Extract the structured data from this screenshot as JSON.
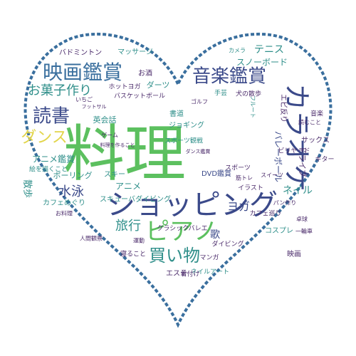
{
  "palette": {
    "green": "#5cc05f",
    "navy": "#3b4a8a",
    "blue": "#3a6f9e",
    "teal": "#2f8f8a",
    "purple": "#4a2a6a",
    "yellow": "#e2d54a",
    "outline": "#3a6f9e"
  },
  "word_cloud": [
    {
      "text": "料理",
      "color": "green"
    },
    {
      "text": "ショッピング",
      "color": "navy"
    },
    {
      "text": "カラオケ",
      "color": "navy"
    },
    {
      "text": "映画鑑賞",
      "color": "blue"
    },
    {
      "text": "音楽鑑賞",
      "color": "navy"
    },
    {
      "text": "ピアノ",
      "color": "green"
    },
    {
      "text": "読書",
      "color": "navy"
    },
    {
      "text": "お菓子作り",
      "color": "teal"
    },
    {
      "text": "ダンス",
      "color": "yellow"
    },
    {
      "text": "買い物",
      "color": "teal"
    },
    {
      "text": "水泳",
      "color": "navy"
    },
    {
      "text": "旅行",
      "color": "teal"
    },
    {
      "text": "テニス",
      "color": "teal"
    },
    {
      "text": "ヨガ",
      "color": "navy"
    },
    {
      "text": "スノーボード",
      "color": "teal"
    },
    {
      "text": "バレーボール",
      "color": "navy"
    },
    {
      "text": "アニメ鑑賞",
      "color": "teal"
    },
    {
      "text": "ネイル",
      "color": "teal"
    },
    {
      "text": "歌",
      "color": "navy"
    },
    {
      "text": "バスケットボール",
      "color": "purple"
    },
    {
      "text": "マッサージ",
      "color": "teal"
    },
    {
      "text": "バドミントン",
      "color": "purple"
    },
    {
      "text": "ダーツ",
      "color": "teal"
    },
    {
      "text": "ホットヨガ",
      "color": "purple"
    },
    {
      "text": "ジョギング",
      "color": "teal"
    },
    {
      "text": "英会話",
      "color": "teal"
    },
    {
      "text": "書道",
      "color": "teal"
    },
    {
      "text": "アニメ",
      "color": "teal"
    },
    {
      "text": "ボーリング",
      "color": "teal"
    },
    {
      "text": "スキューバダイビング",
      "color": "teal"
    },
    {
      "text": "DVD鑑賞",
      "color": "navy"
    },
    {
      "text": "イラスト",
      "color": "purple"
    },
    {
      "text": "散歩",
      "color": "teal"
    },
    {
      "text": "カフェめぐり",
      "color": "teal"
    },
    {
      "text": "絵を描くこと",
      "color": "teal"
    },
    {
      "text": "エビ反り",
      "color": "purple"
    },
    {
      "text": "ビリヤード",
      "color": "purple"
    },
    {
      "text": "ギター",
      "color": "purple"
    },
    {
      "text": "サックス",
      "color": "purple"
    },
    {
      "text": "ドライブ",
      "color": "purple"
    },
    {
      "text": "スポーツ観戦",
      "color": "teal"
    },
    {
      "text": "クラシックバレエ",
      "color": "purple"
    },
    {
      "text": "ネイルアート",
      "color": "teal"
    },
    {
      "text": "ダイビング",
      "color": "purple"
    },
    {
      "text": "コスプレ",
      "color": "teal"
    },
    {
      "text": "映画",
      "color": "purple"
    },
    {
      "text": "音楽",
      "color": "purple"
    },
    {
      "text": "カメラ",
      "color": "teal"
    },
    {
      "text": "手芸",
      "color": "teal"
    },
    {
      "text": "犬の散歩",
      "color": "purple"
    },
    {
      "text": "お酒",
      "color": "purple"
    },
    {
      "text": "スポーツ",
      "color": "purple"
    },
    {
      "text": "エステ",
      "color": "purple"
    },
    {
      "text": "着付け",
      "color": "purple"
    },
    {
      "text": "寝ること",
      "color": "purple"
    },
    {
      "text": "卓球",
      "color": "purple"
    },
    {
      "text": "一輪車",
      "color": "purple"
    },
    {
      "text": "人間観察",
      "color": "purple"
    },
    {
      "text": "運動",
      "color": "purple"
    },
    {
      "text": "マンガ",
      "color": "purple"
    },
    {
      "text": "カフェ巡り",
      "color": "purple"
    },
    {
      "text": "お料理",
      "color": "purple"
    },
    {
      "text": "スキー",
      "color": "teal"
    },
    {
      "text": "いちご",
      "color": "purple"
    },
    {
      "text": "フルート",
      "color": "teal"
    },
    {
      "text": "フットサル",
      "color": "purple"
    },
    {
      "text": "筋トレ",
      "color": "purple"
    },
    {
      "text": "ゲーム",
      "color": "purple"
    },
    {
      "text": "パン作り",
      "color": "purple"
    },
    {
      "text": "料理を作ること",
      "color": "purple"
    },
    {
      "text": "読むこと",
      "color": "purple"
    },
    {
      "text": "ダンス鑑賞",
      "color": "purple"
    },
    {
      "text": "ゴルフ",
      "color": "purple"
    },
    {
      "text": "スイーツ",
      "color": "purple"
    }
  ]
}
